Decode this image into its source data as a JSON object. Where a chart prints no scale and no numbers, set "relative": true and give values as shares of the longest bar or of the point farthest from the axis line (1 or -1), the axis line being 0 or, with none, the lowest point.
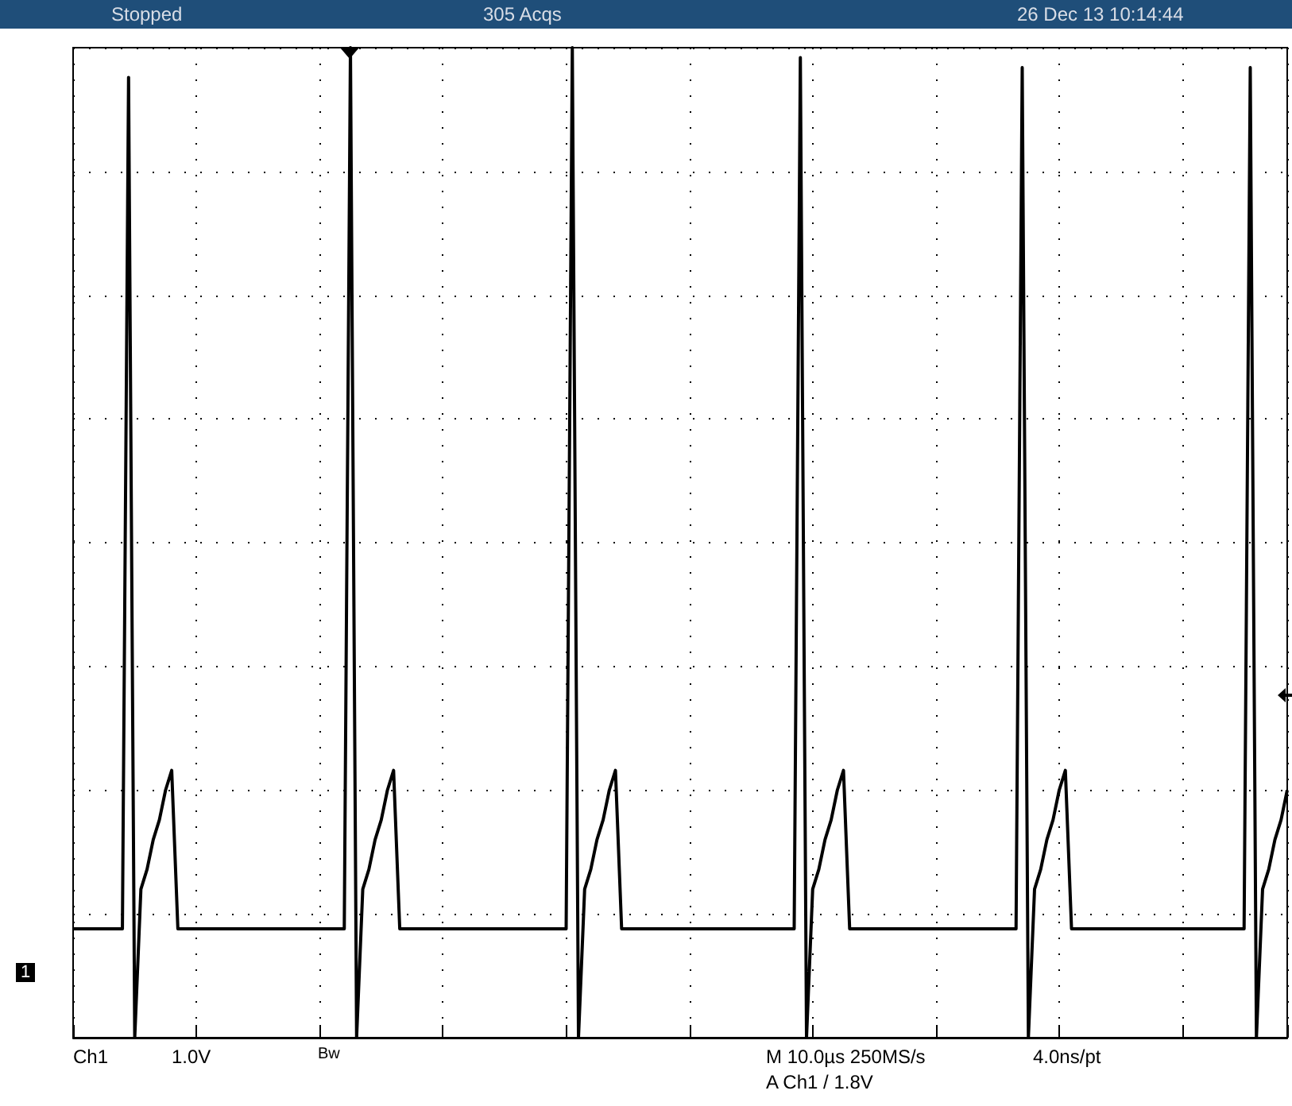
{
  "chart_data": {
    "type": "line",
    "relative": true,
    "color": "#000000",
    "marker": "none",
    "line_style": "solid",
    "grid": true,
    "categories": [
      null,
      null,
      null,
      null,
      null,
      null,
      null,
      null,
      null,
      null,
      null,
      null,
      null,
      null,
      null,
      null,
      null,
      null,
      null,
      null,
      null,
      null,
      null,
      null,
      null,
      null,
      null,
      null,
      null,
      null,
      null,
      null,
      null,
      null,
      null,
      null,
      null,
      null,
      null,
      null,
      null,
      null,
      null,
      null,
      null,
      null,
      null,
      null,
      null,
      null,
      null,
      null,
      null,
      null,
      null,
      null,
      null,
      null,
      null,
      null,
      null,
      null,
      null,
      null,
      null,
      null,
      null,
      null,
      null,
      null,
      null,
      null,
      null,
      null,
      null,
      null,
      null,
      null,
      null,
      null,
      null,
      null,
      null,
      null,
      null,
      null,
      null,
      null,
      null,
      null,
      null,
      null,
      null,
      null,
      null,
      null,
      null,
      null,
      null,
      null,
      null,
      null,
      null,
      null,
      null,
      null,
      null,
      null,
      null,
      null,
      null,
      null,
      null,
      null,
      null,
      null,
      null,
      null,
      null,
      null,
      null,
      null,
      null,
      null,
      null,
      null,
      null,
      null,
      null,
      null,
      null,
      null,
      null,
      null,
      null,
      null,
      null,
      null,
      null,
      null,
      null,
      null,
      null,
      null,
      null,
      null,
      null,
      null,
      null,
      null,
      null,
      null,
      null,
      null,
      null,
      null,
      null,
      null,
      null,
      null,
      null,
      null,
      null,
      null,
      null,
      null,
      null,
      null,
      null,
      null,
      null,
      null,
      null,
      null,
      null,
      null,
      null,
      null,
      null,
      null,
      null,
      null,
      null,
      null,
      null,
      null,
      null,
      null,
      null,
      null,
      null,
      null,
      null,
      null,
      null,
      null,
      null,
      null
    ],
    "values": [
      0.11,
      0.11,
      0.11,
      0.11,
      0.11,
      0.11,
      0.11,
      0.11,
      0.11,
      0.97,
      0,
      0.15,
      0.17,
      0.2,
      0.22,
      0.25,
      0.27,
      0.11,
      0.11,
      0.11,
      0.11,
      0.11,
      0.11,
      0.11,
      0.11,
      0.11,
      0.11,
      0.11,
      0.11,
      0.11,
      0.11,
      0.11,
      0.11,
      0.11,
      0.11,
      0.11,
      0.11,
      0.11,
      0.11,
      0.11,
      0.11,
      0.11,
      0.11,
      0.11,
      0.11,
      1,
      0,
      0.15,
      0.17,
      0.2,
      0.22,
      0.25,
      0.27,
      0.11,
      0.11,
      0.11,
      0.11,
      0.11,
      0.11,
      0.11,
      0.11,
      0.11,
      0.11,
      0.11,
      0.11,
      0.11,
      0.11,
      0.11,
      0.11,
      0.11,
      0.11,
      0.11,
      0.11,
      0.11,
      0.11,
      0.11,
      0.11,
      0.11,
      0.11,
      0.11,
      0.11,
      1,
      0,
      0.15,
      0.17,
      0.2,
      0.22,
      0.25,
      0.27,
      0.11,
      0.11,
      0.11,
      0.11,
      0.11,
      0.11,
      0.11,
      0.11,
      0.11,
      0.11,
      0.11,
      0.11,
      0.11,
      0.11,
      0.11,
      0.11,
      0.11,
      0.11,
      0.11,
      0.11,
      0.11,
      0.11,
      0.11,
      0.11,
      0.11,
      0.11,
      0.11,
      0.11,
      0.11,
      0.99,
      0,
      0.15,
      0.17,
      0.2,
      0.22,
      0.25,
      0.27,
      0.11,
      0.11,
      0.11,
      0.11,
      0.11,
      0.11,
      0.11,
      0.11,
      0.11,
      0.11,
      0.11,
      0.11,
      0.11,
      0.11,
      0.11,
      0.11,
      0.11,
      0.11,
      0.11,
      0.11,
      0.11,
      0.11,
      0.11,
      0.11,
      0.11,
      0.11,
      0.11,
      0.11,
      0.98,
      0,
      0.15,
      0.17,
      0.2,
      0.22,
      0.25,
      0.27,
      0.11,
      0.11,
      0.11,
      0.11,
      0.11,
      0.11,
      0.11,
      0.11,
      0.11,
      0.11,
      0.11,
      0.11,
      0.11,
      0.11,
      0.11,
      0.11,
      0.11,
      0.11,
      0.11,
      0.11,
      0.11,
      0.11,
      0.11,
      0.11,
      0.11,
      0.11,
      0.11,
      0.11,
      0.11,
      0.98,
      0,
      0.15,
      0.17,
      0.2,
      0.22,
      0.25
    ],
    "annotations": [
      "Stopped",
      "305 Acqs",
      "26 Dec 13 10:14:44",
      "Ch1",
      "1.0V",
      "Bw",
      "M 10.0µs 250MS/s",
      "4.0ns/pt",
      "A Ch1 / 1.8V",
      "1"
    ]
  }
}
